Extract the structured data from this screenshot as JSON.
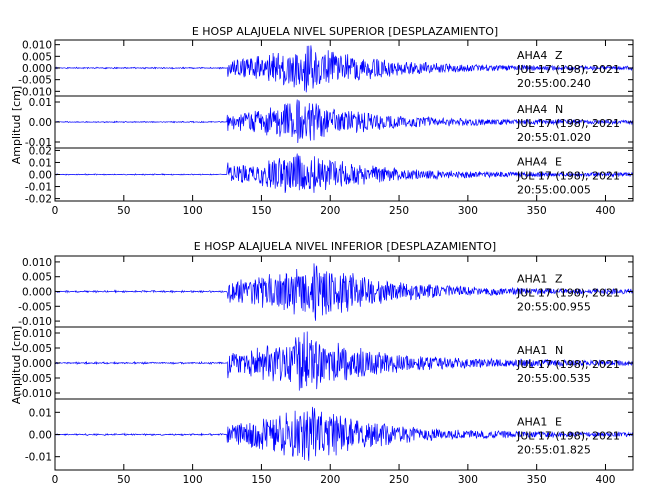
{
  "chart_data": [
    {
      "type": "line",
      "title": "E HOSP ALAJUELA NIVEL SUPERIOR [DESPLAZAMIENTO]",
      "ylabel": "Amplitud [cm]",
      "xlim": [
        0,
        420
      ],
      "x_ticks": [
        "0",
        "50",
        "100",
        "150",
        "200",
        "250",
        "300",
        "350",
        "400"
      ],
      "series_color": "#0000ff",
      "traces": [
        {
          "station": "AHA4",
          "component": "Z",
          "date": "JUL 17 (198), 2021",
          "time": "20:55:00.240",
          "ylim": [
            -0.012,
            0.012
          ],
          "y_ticks": [
            "-0.010",
            "-0.005",
            "0.000",
            "0.005",
            "0.010"
          ],
          "onset_x": 125,
          "peak_x": 185,
          "peak_amplitude": 0.011,
          "pre_event_noise": 0.0004,
          "tail_amplitude": 0.0008
        },
        {
          "station": "AHA4",
          "component": "N",
          "date": "JUL 17 (198), 2021",
          "time": "20:55:01.020",
          "ylim": [
            -0.013,
            0.013
          ],
          "y_ticks": [
            "-0.01",
            "0.00",
            "0.01"
          ],
          "onset_x": 125,
          "peak_x": 178,
          "peak_amplitude": 0.012,
          "pre_event_noise": 0.0004,
          "tail_amplitude": 0.001
        },
        {
          "station": "AHA4",
          "component": "E",
          "date": "JUL 17 (198), 2021",
          "time": "20:55:00.005",
          "ylim": [
            -0.022,
            0.022
          ],
          "y_ticks": [
            "-0.02",
            "-0.01",
            "0.00",
            "0.01",
            "0.02"
          ],
          "onset_x": 125,
          "peak_x": 178,
          "peak_amplitude": 0.02,
          "pre_event_noise": 0.0006,
          "tail_amplitude": 0.0015
        }
      ]
    },
    {
      "type": "line",
      "title": "E HOSP ALAJUELA NIVEL INFERIOR [DESPLAZAMIENTO]",
      "ylabel": "Amplitud [cm]",
      "xlim": [
        0,
        420
      ],
      "x_ticks": [
        "0",
        "50",
        "100",
        "150",
        "200",
        "250",
        "300",
        "350",
        "400"
      ],
      "series_color": "#0000ff",
      "traces": [
        {
          "station": "AHA1",
          "component": "Z",
          "date": "JUL 17 (198), 2021",
          "time": "20:55:00.955",
          "ylim": [
            -0.012,
            0.012
          ],
          "y_ticks": [
            "-0.010",
            "-0.005",
            "0.000",
            "0.005",
            "0.010"
          ],
          "onset_x": 125,
          "peak_x": 190,
          "peak_amplitude": 0.011,
          "pre_event_noise": 0.0004,
          "tail_amplitude": 0.0008
        },
        {
          "station": "AHA1",
          "component": "N",
          "date": "JUL 17 (198), 2021",
          "time": "20:55:00.535",
          "ylim": [
            -0.012,
            0.012
          ],
          "y_ticks": [
            "-0.010",
            "-0.005",
            "0.000",
            "0.005",
            "0.010"
          ],
          "onset_x": 125,
          "peak_x": 182,
          "peak_amplitude": 0.011,
          "pre_event_noise": 0.0004,
          "tail_amplitude": 0.0009
        },
        {
          "station": "AHA1",
          "component": "E",
          "date": "JUL 17 (198), 2021",
          "time": "20:55:01.825",
          "ylim": [
            -0.016,
            0.016
          ],
          "y_ticks": [
            "-0.01",
            "0.00",
            "0.01"
          ],
          "onset_x": 125,
          "peak_x": 185,
          "peak_amplitude": 0.014,
          "pre_event_noise": 0.0005,
          "tail_amplitude": 0.001
        }
      ]
    }
  ]
}
